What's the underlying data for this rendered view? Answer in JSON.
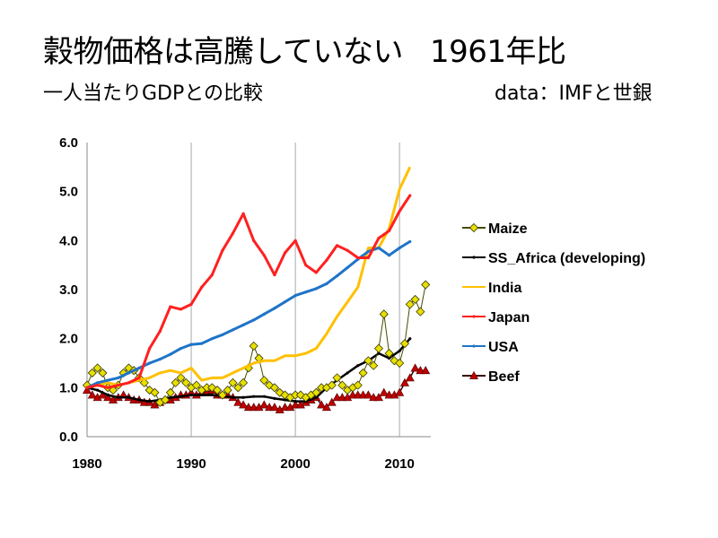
{
  "header": {
    "title_main": "穀物価格は高騰していない",
    "title_suffix": "1961年比",
    "subtitle": "一人当たりGDPとの比較",
    "source": "data：IMFと世銀"
  },
  "colors": {
    "maize": "#e8e000",
    "ss_africa": "#000000",
    "india": "#ffc000",
    "japan": "#ff2020",
    "usa": "#1f74c8",
    "beef": "#c00000",
    "beef_line": "#3a0000",
    "grid": "#b8b8b8",
    "axis": "#888888"
  },
  "chart_data": {
    "type": "line",
    "xlim": [
      1980,
      2013
    ],
    "ylim": [
      0,
      6
    ],
    "x_ticks": [
      1980,
      1990,
      2000,
      2010
    ],
    "x_tick_labels": [
      "1980",
      "1990",
      "2000",
      "2010"
    ],
    "y_ticks": [
      0,
      1,
      2,
      3,
      4,
      5,
      6
    ],
    "y_tick_labels": [
      "0.0",
      "1.0",
      "2.0",
      "3.0",
      "4.0",
      "5.0",
      "6.0"
    ],
    "grid": "vertical at x ticks",
    "legend_position": "right",
    "series": [
      {
        "name": "Maize",
        "key": "maize",
        "marker": "diamond",
        "x": [
          1980,
          1980.5,
          1981,
          1981.5,
          1982,
          1982.5,
          1983,
          1983.5,
          1984,
          1984.5,
          1985,
          1985.5,
          1986,
          1986.5,
          1987,
          1987.5,
          1988,
          1988.5,
          1989,
          1989.5,
          1990,
          1990.5,
          1991,
          1991.5,
          1992,
          1992.5,
          1993,
          1993.5,
          1994,
          1994.5,
          1995,
          1995.5,
          1996,
          1996.5,
          1997,
          1997.5,
          1998,
          1998.5,
          1999,
          1999.5,
          2000,
          2000.5,
          2001,
          2001.5,
          2002,
          2002.5,
          2003,
          2003.5,
          2004,
          2004.5,
          2005,
          2005.5,
          2006,
          2006.5,
          2007,
          2007.5,
          2008,
          2008.5,
          2009,
          2009.5,
          2010,
          2010.5,
          2011,
          2011.5,
          2012,
          2012.5
        ],
        "values": [
          1.05,
          1.3,
          1.4,
          1.3,
          1.0,
          0.95,
          1.05,
          1.3,
          1.4,
          1.35,
          1.2,
          1.1,
          0.95,
          0.9,
          0.7,
          0.75,
          0.9,
          1.1,
          1.2,
          1.1,
          1.0,
          1.05,
          0.95,
          1.0,
          1.0,
          0.95,
          0.85,
          0.95,
          1.1,
          1.0,
          1.1,
          1.4,
          1.85,
          1.6,
          1.15,
          1.05,
          1.0,
          0.9,
          0.85,
          0.8,
          0.85,
          0.85,
          0.8,
          0.85,
          0.9,
          1.0,
          1.0,
          1.05,
          1.2,
          1.05,
          0.95,
          1.0,
          1.05,
          1.3,
          1.55,
          1.45,
          1.8,
          2.5,
          1.7,
          1.55,
          1.5,
          1.9,
          2.7,
          2.8,
          2.55,
          3.1
        ]
      },
      {
        "name": "SS_Africa (developing)",
        "key": "ss_africa",
        "marker": "small-dot",
        "x": [
          1980,
          1981,
          1982,
          1983,
          1984,
          1985,
          1986,
          1987,
          1988,
          1989,
          1990,
          1991,
          1992,
          1993,
          1994,
          1995,
          1996,
          1997,
          1998,
          1999,
          2000,
          2001,
          2002,
          2003,
          2004,
          2005,
          2006,
          2007,
          2008,
          2009,
          2010,
          2011
        ],
        "values": [
          1.0,
          0.95,
          0.85,
          0.8,
          0.8,
          0.75,
          0.72,
          0.75,
          0.8,
          0.82,
          0.85,
          0.85,
          0.85,
          0.83,
          0.8,
          0.8,
          0.82,
          0.82,
          0.78,
          0.75,
          0.72,
          0.72,
          0.8,
          1.0,
          1.15,
          1.3,
          1.45,
          1.55,
          1.7,
          1.6,
          1.75,
          2.0
        ]
      },
      {
        "name": "India",
        "key": "india",
        "marker": "none",
        "x": [
          1980,
          1981,
          1982,
          1983,
          1984,
          1985,
          1986,
          1987,
          1988,
          1989,
          1990,
          1991,
          1992,
          1993,
          1994,
          1995,
          1996,
          1997,
          1998,
          1999,
          2000,
          2001,
          2002,
          2003,
          2004,
          2005,
          2006,
          2007,
          2008,
          2009,
          2010,
          2011
        ],
        "values": [
          1.0,
          1.05,
          1.1,
          1.05,
          1.1,
          1.15,
          1.2,
          1.3,
          1.35,
          1.3,
          1.4,
          1.15,
          1.2,
          1.2,
          1.3,
          1.4,
          1.5,
          1.55,
          1.55,
          1.65,
          1.65,
          1.7,
          1.8,
          2.1,
          2.45,
          2.75,
          3.05,
          3.85,
          3.85,
          4.25,
          5.05,
          5.5
        ]
      },
      {
        "name": "Japan",
        "key": "japan",
        "marker": "small-dot",
        "x": [
          1980,
          1981,
          1982,
          1983,
          1984,
          1985,
          1986,
          1987,
          1988,
          1989,
          1990,
          1991,
          1992,
          1993,
          1994,
          1995,
          1996,
          1997,
          1998,
          1999,
          2000,
          2001,
          2002,
          2003,
          2004,
          2005,
          2006,
          2007,
          2008,
          2009,
          2010,
          2011
        ],
        "values": [
          1.0,
          1.05,
          1.0,
          1.05,
          1.1,
          1.2,
          1.8,
          2.15,
          2.65,
          2.6,
          2.7,
          3.05,
          3.3,
          3.8,
          4.15,
          4.55,
          4.0,
          3.7,
          3.3,
          3.75,
          4.0,
          3.5,
          3.35,
          3.6,
          3.9,
          3.8,
          3.65,
          3.65,
          4.05,
          4.2,
          4.6,
          4.92
        ]
      },
      {
        "name": "USA",
        "key": "usa",
        "marker": "small-dot",
        "x": [
          1980,
          1981,
          1982,
          1983,
          1984,
          1985,
          1986,
          1987,
          1988,
          1989,
          1990,
          1991,
          1992,
          1993,
          1994,
          1995,
          1996,
          1997,
          1998,
          1999,
          2000,
          2001,
          2002,
          2003,
          2004,
          2005,
          2006,
          2007,
          2008,
          2009,
          2010,
          2011
        ],
        "values": [
          1.0,
          1.1,
          1.15,
          1.2,
          1.3,
          1.4,
          1.5,
          1.58,
          1.68,
          1.8,
          1.88,
          1.9,
          2.0,
          2.08,
          2.18,
          2.28,
          2.38,
          2.5,
          2.62,
          2.75,
          2.88,
          2.95,
          3.02,
          3.12,
          3.28,
          3.45,
          3.62,
          3.78,
          3.85,
          3.7,
          3.85,
          3.98
        ]
      },
      {
        "name": "Beef",
        "key": "beef",
        "marker": "triangle",
        "x": [
          1980,
          1980.5,
          1981,
          1981.5,
          1982,
          1982.5,
          1983,
          1983.5,
          1984,
          1984.5,
          1985,
          1985.5,
          1986,
          1986.5,
          1987,
          1987.5,
          1988,
          1988.5,
          1989,
          1989.5,
          1990,
          1990.5,
          1991,
          1991.5,
          1992,
          1992.5,
          1993,
          1993.5,
          1994,
          1994.5,
          1995,
          1995.5,
          1996,
          1996.5,
          1997,
          1997.5,
          1998,
          1998.5,
          1999,
          1999.5,
          2000,
          2000.5,
          2001,
          2001.5,
          2002,
          2002.5,
          2003,
          2003.5,
          2004,
          2004.5,
          2005,
          2005.5,
          2006,
          2006.5,
          2007,
          2007.5,
          2008,
          2008.5,
          2009,
          2009.5,
          2010,
          2010.5,
          2011,
          2011.5,
          2012,
          2012.5
        ],
        "values": [
          0.95,
          0.85,
          0.8,
          0.85,
          0.8,
          0.75,
          0.8,
          0.85,
          0.8,
          0.75,
          0.75,
          0.7,
          0.7,
          0.65,
          0.7,
          0.75,
          0.75,
          0.8,
          0.85,
          0.85,
          0.9,
          0.85,
          0.9,
          0.9,
          0.95,
          0.85,
          0.85,
          0.85,
          0.8,
          0.7,
          0.65,
          0.6,
          0.6,
          0.6,
          0.65,
          0.6,
          0.6,
          0.55,
          0.6,
          0.6,
          0.65,
          0.65,
          0.7,
          0.75,
          0.8,
          0.65,
          0.6,
          0.7,
          0.8,
          0.8,
          0.8,
          0.85,
          0.85,
          0.85,
          0.85,
          0.8,
          0.8,
          0.9,
          0.85,
          0.85,
          0.9,
          1.1,
          1.2,
          1.4,
          1.35,
          1.35
        ]
      }
    ]
  }
}
